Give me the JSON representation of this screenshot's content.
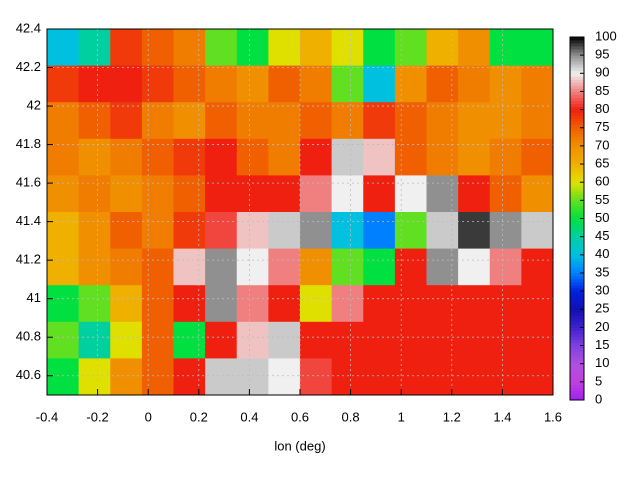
{
  "chart_data": {
    "type": "heatmap",
    "xlabel": "lon (deg)",
    "xlim": [
      -0.4,
      1.6
    ],
    "xticks": [
      -0.4,
      -0.2,
      0,
      0.2,
      0.4,
      0.6,
      0.8,
      1,
      1.2,
      1.4,
      1.6
    ],
    "ylim": [
      40.5,
      42.4
    ],
    "yticks": [
      40.6,
      40.8,
      41,
      41.2,
      41.4,
      41.6,
      41.8,
      42,
      42.2,
      42.4
    ],
    "clim": [
      0,
      100
    ],
    "cticks": [
      0,
      5,
      10,
      15,
      20,
      25,
      30,
      35,
      40,
      45,
      50,
      55,
      60,
      65,
      70,
      75,
      80,
      85,
      90,
      95,
      100
    ],
    "colormap": [
      "#a020f0",
      "#c040e0",
      "#b050e0",
      "#8040e0",
      "#4020d0",
      "#1010b0",
      "#0020e0",
      "#0080ff",
      "#00c0e0",
      "#00d0a0",
      "#00e040",
      "#60e020",
      "#e0e000",
      "#f0b000",
      "#f09000",
      "#f06000",
      "#f02010",
      "#f08080",
      "#f0f0f0",
      "#909090",
      "#000000"
    ],
    "grid": true,
    "z": [
      [
        40,
        45,
        78,
        75,
        72,
        55,
        50,
        60,
        65,
        60,
        50,
        55,
        65,
        70,
        50,
        50
      ],
      [
        78,
        80,
        80,
        78,
        75,
        72,
        70,
        75,
        72,
        55,
        40,
        70,
        75,
        72,
        70,
        72
      ],
      [
        72,
        75,
        78,
        72,
        70,
        75,
        72,
        72,
        75,
        72,
        78,
        75,
        72,
        70,
        70,
        72
      ],
      [
        72,
        70,
        72,
        75,
        78,
        80,
        75,
        72,
        80,
        92,
        88,
        75,
        72,
        70,
        72,
        75
      ],
      [
        70,
        72,
        70,
        72,
        75,
        80,
        80,
        80,
        85,
        90,
        80,
        90,
        95,
        80,
        75,
        70
      ],
      [
        65,
        70,
        75,
        72,
        78,
        82,
        88,
        92,
        95,
        40,
        35,
        55,
        92,
        98,
        95,
        92
      ],
      [
        65,
        70,
        72,
        75,
        88,
        95,
        90,
        85,
        70,
        55,
        50,
        80,
        95,
        90,
        85,
        80
      ],
      [
        50,
        55,
        65,
        75,
        80,
        95,
        85,
        80,
        60,
        85,
        80,
        80,
        80,
        80,
        80,
        80
      ],
      [
        55,
        45,
        60,
        75,
        50,
        80,
        88,
        92,
        80,
        80,
        80,
        80,
        80,
        80,
        80,
        80
      ],
      [
        50,
        60,
        70,
        75,
        80,
        92,
        92,
        90,
        82,
        80,
        80,
        80,
        80,
        80,
        80,
        80
      ]
    ]
  }
}
